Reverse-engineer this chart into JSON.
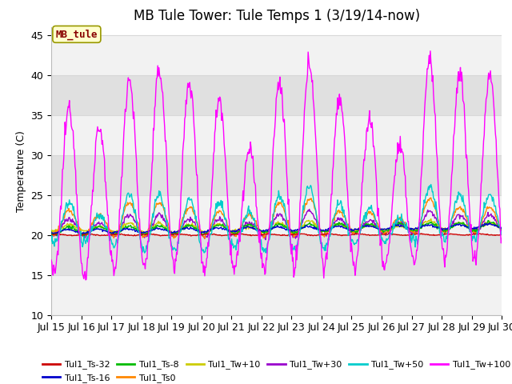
{
  "title": "MB Tule Tower: Tule Temps 1 (3/19/14-now)",
  "ylabel": "Temperature (C)",
  "ylim": [
    10,
    46
  ],
  "yticks": [
    10,
    15,
    20,
    25,
    30,
    35,
    40,
    45
  ],
  "xlim": [
    0,
    15
  ],
  "xtick_labels": [
    "Jul 15",
    "Jul 16",
    "Jul 17",
    "Jul 18",
    "Jul 19",
    "Jul 20",
    "Jul 21",
    "Jul 22",
    "Jul 23",
    "Jul 24",
    "Jul 25",
    "Jul 26",
    "Jul 27",
    "Jul 28",
    "Jul 29",
    "Jul 30"
  ],
  "legend_label": "MB_tule",
  "series_labels": [
    "Tul1_Ts-32",
    "Tul1_Ts-16",
    "Tul1_Ts-8",
    "Tul1_Ts0",
    "Tul1_Tw+10",
    "Tul1_Tw+30",
    "Tul1_Tw+50",
    "Tul1_Tw+100"
  ],
  "series_colors": [
    "#cc0000",
    "#0000cc",
    "#00bb00",
    "#ff8800",
    "#cccc00",
    "#9900cc",
    "#00cccc",
    "#ff00ff"
  ],
  "bg_color": "#ffffff",
  "plot_bg_light": "#f2f2f2",
  "plot_bg_dark": "#e0e0e0",
  "grid_color": "#d8d8d8",
  "title_fontsize": 12,
  "tick_fontsize": 9,
  "label_fontsize": 9,
  "legend_box_facecolor": "#ffffcc",
  "legend_box_edgecolor": "#999900",
  "legend_text_color": "#880000",
  "magenta_peaks": [
    36,
    33.5,
    39.5,
    40.5,
    38.8,
    37.0,
    30.5,
    39.0,
    41.5,
    37.2,
    34.5,
    31.0,
    42.0,
    40.2,
    40.0
  ],
  "magenta_troughs": [
    15.0,
    14.5,
    15.8,
    16.0,
    16.0,
    15.5,
    15.8,
    15.5,
    15.5,
    15.8,
    16.0,
    16.0,
    16.5,
    16.8,
    16.8
  ]
}
